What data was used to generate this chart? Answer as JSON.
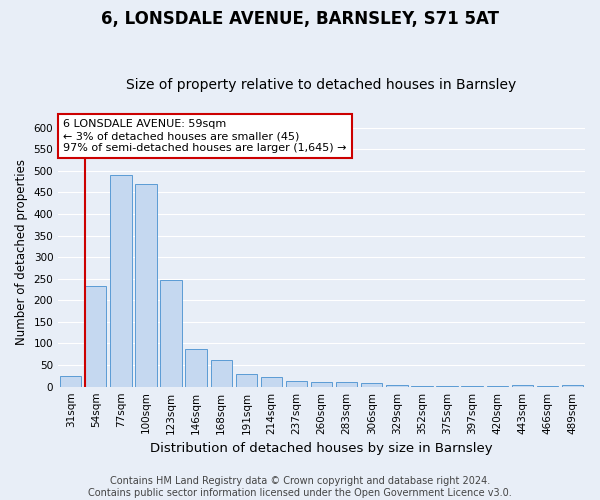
{
  "title": "6, LONSDALE AVENUE, BARNSLEY, S71 5AT",
  "subtitle": "Size of property relative to detached houses in Barnsley",
  "xlabel": "Distribution of detached houses by size in Barnsley",
  "ylabel": "Number of detached properties",
  "categories": [
    "31sqm",
    "54sqm",
    "77sqm",
    "100sqm",
    "123sqm",
    "146sqm",
    "168sqm",
    "191sqm",
    "214sqm",
    "237sqm",
    "260sqm",
    "283sqm",
    "306sqm",
    "329sqm",
    "352sqm",
    "375sqm",
    "397sqm",
    "420sqm",
    "443sqm",
    "466sqm",
    "489sqm"
  ],
  "values": [
    25,
    232,
    490,
    470,
    248,
    88,
    62,
    30,
    22,
    12,
    11,
    10,
    9,
    5,
    2,
    2,
    2,
    2,
    5,
    1,
    4
  ],
  "bar_color": "#c5d8f0",
  "bar_edge_color": "#5b9bd5",
  "vline_color": "#cc0000",
  "annotation_text": "6 LONSDALE AVENUE: 59sqm\n← 3% of detached houses are smaller (45)\n97% of semi-detached houses are larger (1,645) →",
  "annotation_box_color": "#ffffff",
  "annotation_box_edge_color": "#cc0000",
  "ylim": [
    0,
    625
  ],
  "yticks": [
    0,
    50,
    100,
    150,
    200,
    250,
    300,
    350,
    400,
    450,
    500,
    550,
    600
  ],
  "footer_text": "Contains HM Land Registry data © Crown copyright and database right 2024.\nContains public sector information licensed under the Open Government Licence v3.0.",
  "background_color": "#e8eef7",
  "plot_background_color": "#e8eef7",
  "title_fontsize": 12,
  "subtitle_fontsize": 10,
  "xlabel_fontsize": 9.5,
  "ylabel_fontsize": 8.5,
  "tick_fontsize": 7.5,
  "annotation_fontsize": 8,
  "footer_fontsize": 7
}
